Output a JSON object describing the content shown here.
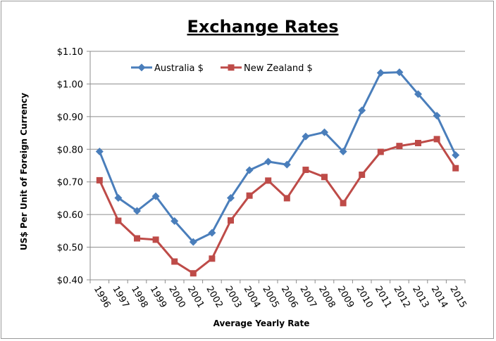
{
  "chart_data": {
    "type": "line",
    "title": "Exchange Rates",
    "xlabel": "Average Yearly Rate",
    "ylabel": "US$ Per Unit of Foreign Currency",
    "categories": [
      "1996",
      "1997",
      "1998",
      "1999",
      "2000",
      "2001",
      "2002",
      "2003",
      "2004",
      "2005",
      "2006",
      "2007",
      "2008",
      "2009",
      "2010",
      "2011",
      "2012",
      "2013",
      "2014",
      "2015"
    ],
    "y_ticks": [
      "$0.40",
      "$0.50",
      "$0.60",
      "$0.70",
      "$0.80",
      "$0.90",
      "$1.00",
      "$1.10"
    ],
    "ylim": [
      0.4,
      1.1
    ],
    "grid": true,
    "legend_position": "top-left",
    "series": [
      {
        "name": "Australia $",
        "color": "#4a7ebb",
        "marker": "diamond",
        "values": [
          0.793,
          0.651,
          0.611,
          0.656,
          0.58,
          0.516,
          0.544,
          0.651,
          0.736,
          0.762,
          0.753,
          0.839,
          0.852,
          0.793,
          0.919,
          1.034,
          1.036,
          0.969,
          0.903,
          0.782
        ]
      },
      {
        "name": "New Zealand $",
        "color": "#be4b48",
        "marker": "square",
        "values": [
          0.705,
          0.581,
          0.527,
          0.523,
          0.456,
          0.42,
          0.465,
          0.582,
          0.658,
          0.704,
          0.65,
          0.737,
          0.715,
          0.635,
          0.722,
          0.792,
          0.81,
          0.819,
          0.831,
          0.742
        ]
      }
    ]
  }
}
